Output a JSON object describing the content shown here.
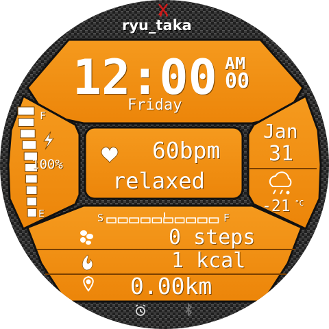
{
  "brand": {
    "name": "ryu_taka"
  },
  "time": {
    "clock": "12:00",
    "ampm": "AM",
    "seconds": "00",
    "weekday": "Friday"
  },
  "date": {
    "month": "Jan",
    "day": "31"
  },
  "weather": {
    "icon": "cloud-rain-snow-icon",
    "temperature": "-21",
    "unit": "°C"
  },
  "battery": {
    "full_label": "F",
    "empty_label": "E",
    "percent_text": "100%",
    "level": 1.0,
    "icon": "lightning-icon"
  },
  "heart": {
    "icon": "heart-icon",
    "rate": "60bpm",
    "status": "relaxed"
  },
  "steps_gauge": {
    "start_label": "S",
    "end_label": "F",
    "progress": 0
  },
  "steps": {
    "icon": "footprints-icon",
    "value": "0 steps"
  },
  "calories": {
    "icon": "flame-icon",
    "value": "1 kcal"
  },
  "distance": {
    "icon": "location-pin-icon",
    "value": "0.00km"
  },
  "status_icons": [
    "alarm-icon",
    "bluetooth-icon"
  ],
  "colors": {
    "accent": "#f08c12",
    "panel_dark": "#c96d05",
    "carbon": "#2a2a2a",
    "text": "#ffffff",
    "logo": "#cc1a1a"
  }
}
